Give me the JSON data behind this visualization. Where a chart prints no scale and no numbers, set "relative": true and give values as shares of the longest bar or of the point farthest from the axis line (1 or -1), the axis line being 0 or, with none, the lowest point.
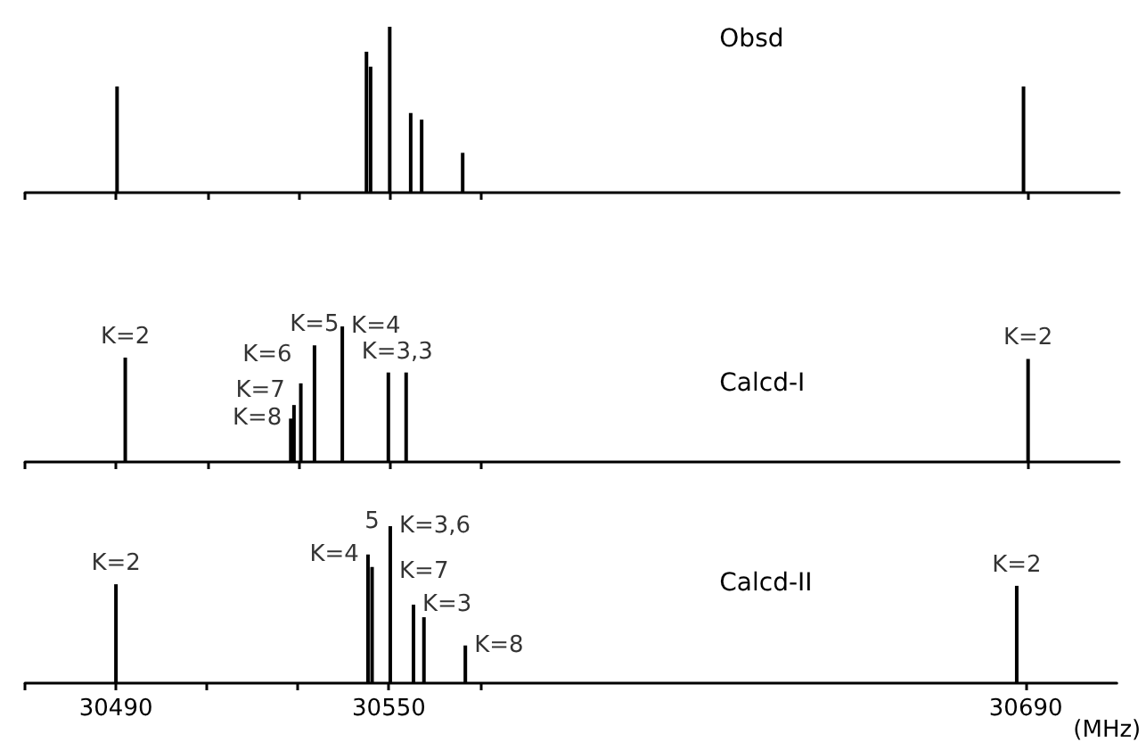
{
  "chart_data": [
    {
      "type": "bar",
      "title": "Obsd",
      "relative": true,
      "color": "#000000",
      "tick_labels": false,
      "xlim": [
        30470,
        30710
      ],
      "xticks": [
        {
          "value": 30470,
          "label": null
        },
        {
          "value": 30490,
          "label": null
        },
        {
          "value": 30510,
          "label": null
        },
        {
          "value": 30530,
          "label": null
        },
        {
          "value": 30550,
          "label": null
        },
        {
          "value": 30570,
          "label": null
        },
        {
          "value": 30690,
          "label": null
        }
      ],
      "x": [
        30490.2,
        30544.9,
        30545.8,
        30550,
        30554.6,
        30557,
        30566,
        30689
      ],
      "values": [
        0.64,
        0.85,
        0.76,
        1,
        0.48,
        0.44,
        0.24,
        0.64
      ]
    },
    {
      "type": "bar",
      "title": "Calcd-I",
      "relative": true,
      "color": "#000000",
      "tick_labels": false,
      "xlim": [
        30470,
        30710
      ],
      "xticks": [
        {
          "value": 30470,
          "label": null
        },
        {
          "value": 30490,
          "label": null
        },
        {
          "value": 30510,
          "label": null
        },
        {
          "value": 30530,
          "label": null
        },
        {
          "value": 30550,
          "label": null
        },
        {
          "value": 30570,
          "label": null
        },
        {
          "value": 30690,
          "label": null
        }
      ],
      "x": [
        30492,
        30528.3,
        30529,
        30530.5,
        30533.5,
        30539.6,
        30549.7,
        30553.6,
        30690
      ],
      "values": [
        0.77,
        0.32,
        0.42,
        0.58,
        0.86,
        1,
        0.66,
        0.66,
        0.76
      ],
      "annotations": [
        {
          "text": "K=2",
          "x": 30492,
          "y": 0.77
        },
        {
          "text": "K=8",
          "x": 30528.3,
          "y": 0.32
        },
        {
          "text": "K=7",
          "x": 30529,
          "y": 0.42
        },
        {
          "text": "K=6",
          "x": 30530.5,
          "y": 0.58
        },
        {
          "text": "K=5",
          "x": 30533.5,
          "y": 0.86
        },
        {
          "text": "K=4",
          "x": 30539.6,
          "y": 1
        },
        {
          "text": "K=3,3",
          "x": 30551.65,
          "y": 0.66
        },
        {
          "text": "K=2",
          "x": 30690,
          "y": 0.76
        }
      ]
    },
    {
      "type": "bar",
      "title": "Calcd-II",
      "relative": true,
      "color": "#000000",
      "tick_labels": "x",
      "xlabel": "(MHz)",
      "xlim": [
        30470,
        30710
      ],
      "xticks": [
        {
          "value": 30470,
          "label": null
        },
        30490,
        {
          "value": 30510,
          "label": null
        },
        {
          "value": 30530,
          "label": null
        },
        30550,
        {
          "value": 30570,
          "label": null
        },
        30690
      ],
      "x": [
        30490,
        30545.4,
        30546.3,
        30550.3,
        30555.4,
        30557.7,
        30566.8,
        30688
      ],
      "values": [
        0.63,
        0.82,
        0.74,
        1,
        0.5,
        0.42,
        0.24,
        0.62
      ],
      "annotations": [
        {
          "text": "K=2",
          "x": 30490,
          "y": 0.63
        },
        {
          "text": "K=4",
          "x": 30545.4,
          "y": 0.82
        },
        {
          "text": "5",
          "x": 30546.3,
          "y": 0.74
        },
        {
          "text": "K=3,6",
          "x": 30550.3,
          "y": 1
        },
        {
          "text": "K=3",
          "x": 30555.4,
          "y": 0.5
        },
        {
          "text": "K=7",
          "x": 30557.7,
          "y": 0.42
        },
        {
          "text": "K=8",
          "x": 30566.8,
          "y": 0.24
        },
        {
          "text": "K=2",
          "x": 30688,
          "y": 0.62
        }
      ]
    }
  ]
}
